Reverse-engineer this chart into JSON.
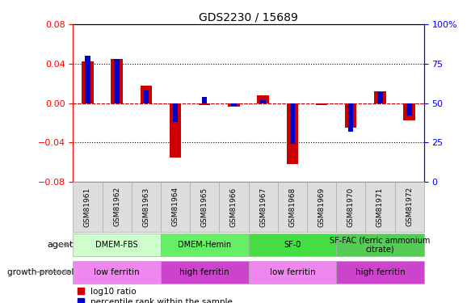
{
  "title": "GDS2230 / 15689",
  "samples": [
    "GSM81961",
    "GSM81962",
    "GSM81963",
    "GSM81964",
    "GSM81965",
    "GSM81966",
    "GSM81967",
    "GSM81968",
    "GSM81969",
    "GSM81970",
    "GSM81971",
    "GSM81972"
  ],
  "log10_ratio": [
    0.042,
    0.045,
    0.018,
    -0.055,
    -0.002,
    -0.004,
    0.008,
    -0.062,
    -0.002,
    -0.025,
    0.012,
    -0.018
  ],
  "percentile_rank": [
    80,
    78,
    58,
    38,
    54,
    48,
    52,
    24,
    50,
    32,
    57,
    42
  ],
  "red_color": "#cc0000",
  "blue_color": "#0000cc",
  "ylim_left": [
    -0.08,
    0.08
  ],
  "ylim_right": [
    0,
    100
  ],
  "yticks_left": [
    -0.08,
    -0.04,
    0,
    0.04,
    0.08
  ],
  "yticks_right": [
    0,
    25,
    50,
    75,
    100
  ],
  "ytick_labels_right": [
    "0",
    "25",
    "50",
    "75",
    "100%"
  ],
  "agent_groups": [
    {
      "label": "DMEM-FBS",
      "start": 0,
      "end": 2,
      "color": "#ccffcc"
    },
    {
      "label": "DMEM-Hemin",
      "start": 3,
      "end": 5,
      "color": "#66ee66"
    },
    {
      "label": "SF-0",
      "start": 6,
      "end": 8,
      "color": "#44dd44"
    },
    {
      "label": "SF-FAC (ferric ammonium\ncitrate)",
      "start": 9,
      "end": 11,
      "color": "#55cc55"
    }
  ],
  "protocol_groups": [
    {
      "label": "low ferritin",
      "start": 0,
      "end": 2,
      "color": "#ee88ee"
    },
    {
      "label": "high ferritin",
      "start": 3,
      "end": 5,
      "color": "#cc44cc"
    },
    {
      "label": "low ferritin",
      "start": 6,
      "end": 8,
      "color": "#ee88ee"
    },
    {
      "label": "high ferritin",
      "start": 9,
      "end": 11,
      "color": "#cc44cc"
    }
  ],
  "red_bar_width": 0.4,
  "blue_bar_width": 0.18,
  "legend_red_label": "log10 ratio",
  "legend_blue_label": "percentile rank within the sample",
  "zero_line_color": "#cc0000",
  "background_plot": "#ffffff"
}
